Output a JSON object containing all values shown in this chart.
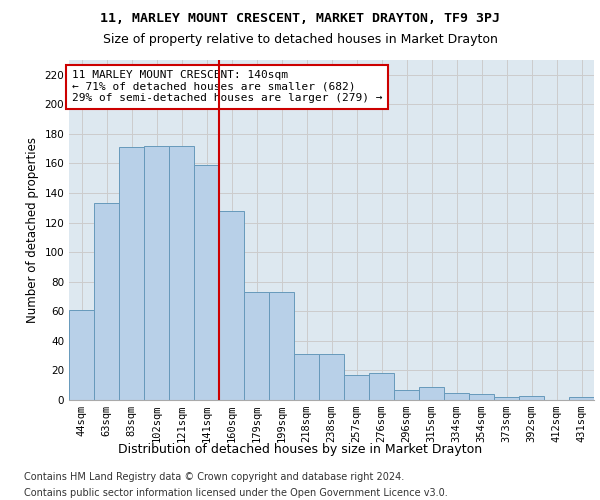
{
  "title1": "11, MARLEY MOUNT CRESCENT, MARKET DRAYTON, TF9 3PJ",
  "title2": "Size of property relative to detached houses in Market Drayton",
  "xlabel": "Distribution of detached houses by size in Market Drayton",
  "ylabel": "Number of detached properties",
  "footer1": "Contains HM Land Registry data © Crown copyright and database right 2024.",
  "footer2": "Contains public sector information licensed under the Open Government Licence v3.0.",
  "categories": [
    "44sqm",
    "63sqm",
    "83sqm",
    "102sqm",
    "121sqm",
    "141sqm",
    "160sqm",
    "179sqm",
    "199sqm",
    "218sqm",
    "238sqm",
    "257sqm",
    "276sqm",
    "296sqm",
    "315sqm",
    "334sqm",
    "354sqm",
    "373sqm",
    "392sqm",
    "412sqm",
    "431sqm"
  ],
  "values": [
    61,
    133,
    171,
    172,
    172,
    159,
    128,
    73,
    73,
    31,
    31,
    17,
    18,
    7,
    9,
    5,
    4,
    2,
    3,
    0,
    2
  ],
  "bar_color": "#b8d0e8",
  "bar_edge_color": "#6699bb",
  "highlight_index": 5,
  "annotation_text": "11 MARLEY MOUNT CRESCENT: 140sqm\n← 71% of detached houses are smaller (682)\n29% of semi-detached houses are larger (279) →",
  "annotation_box_color": "#ffffff",
  "annotation_box_edge": "#cc0000",
  "vline_color": "#cc0000",
  "ylim": [
    0,
    230
  ],
  "yticks": [
    0,
    20,
    40,
    60,
    80,
    100,
    120,
    140,
    160,
    180,
    200,
    220
  ],
  "grid_color": "#cccccc",
  "bg_color": "#dde8f0",
  "fig_bg": "#ffffff",
  "title1_fontsize": 9.5,
  "title2_fontsize": 9,
  "xlabel_fontsize": 9,
  "ylabel_fontsize": 8.5,
  "tick_fontsize": 7.5,
  "annotation_fontsize": 8,
  "footer_fontsize": 7
}
